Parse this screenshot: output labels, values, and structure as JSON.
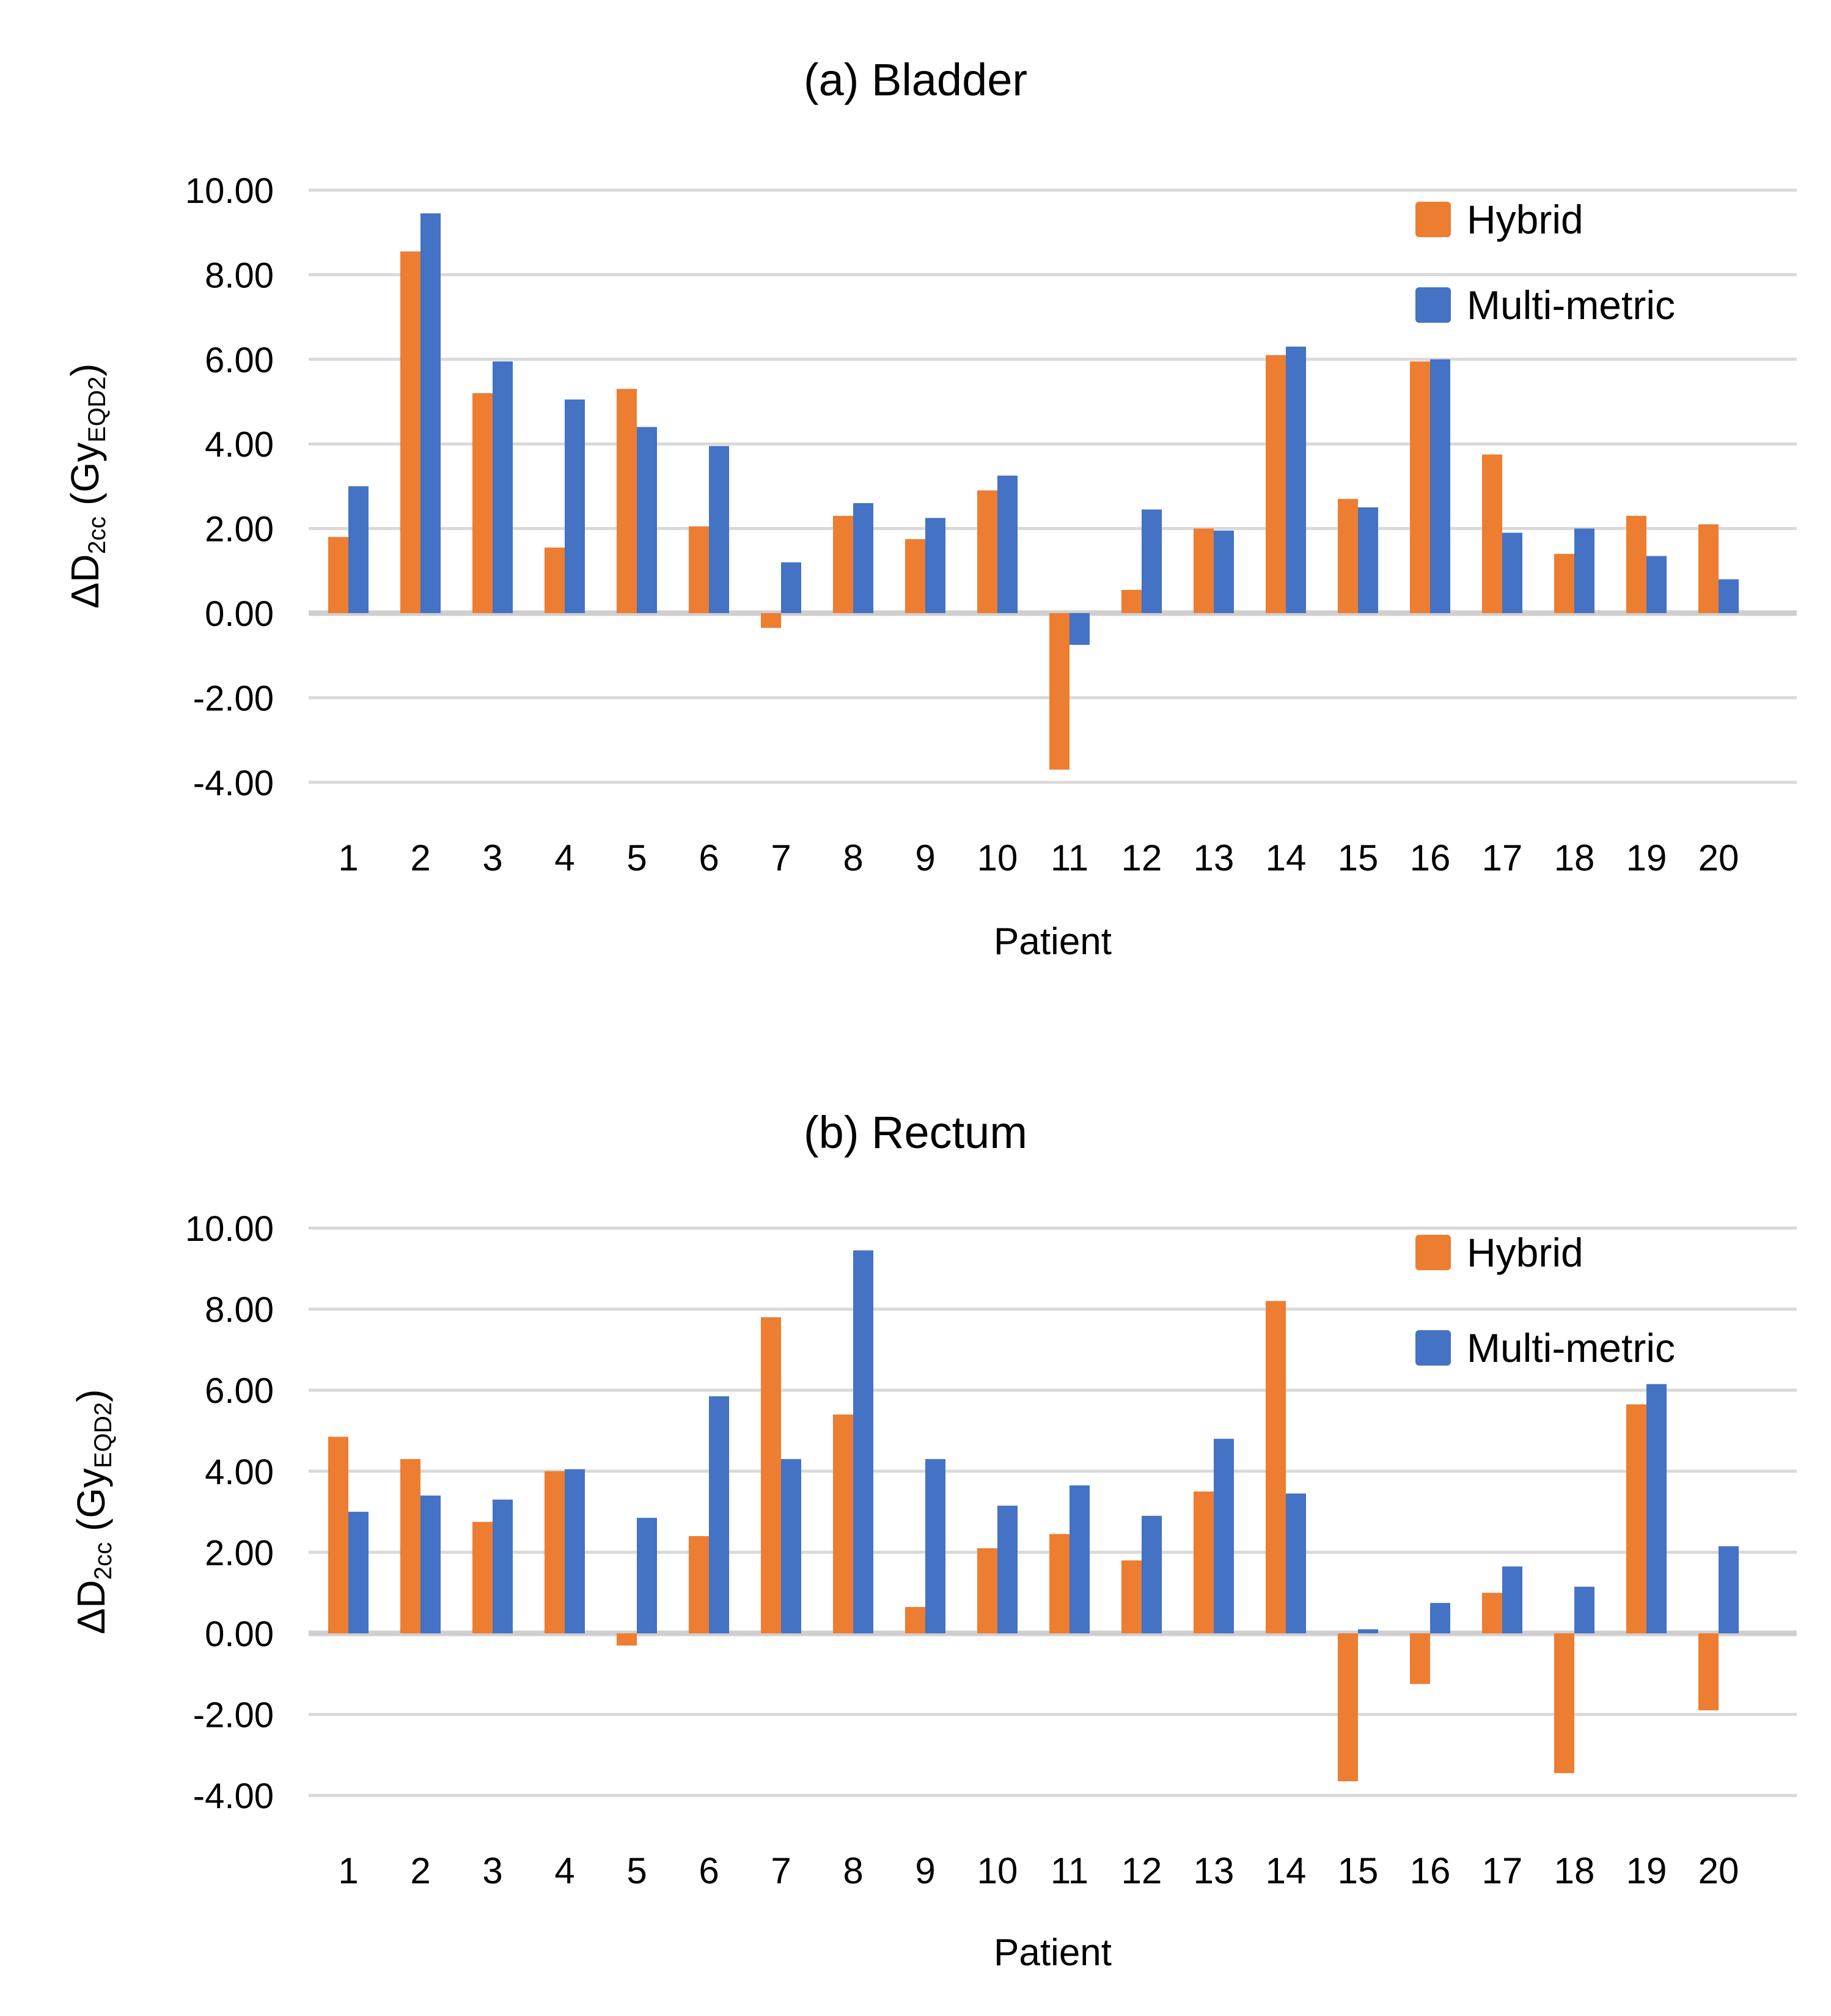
{
  "colors": {
    "hybrid": "#ED7D31",
    "multimetric": "#4472C4",
    "gridline": "#D9D9D9",
    "zero_line": "#D0CECE",
    "text": "#000000",
    "background": "#FFFFFF"
  },
  "chart_data": [
    {
      "type": "bar",
      "title": "(a) Bladder",
      "xlabel": "Patient",
      "ylabel": "ΔD2cc (GyEQD2)",
      "ylabel_parts": {
        "prefix": "ΔD",
        "sub1": "2cc",
        "mid": " (Gy",
        "sub2": "EQD2",
        "suffix": ")"
      },
      "ylim": [
        -4,
        10
      ],
      "yticks": [
        10,
        8,
        6,
        4,
        2,
        0,
        -2,
        -4
      ],
      "ytick_labels": [
        "10.00",
        "8.00",
        "6.00",
        "4.00",
        "2.00",
        "0.00",
        "-2.00",
        "-4.00"
      ],
      "grid": true,
      "legend_position": "top-right",
      "categories": [
        "1",
        "2",
        "3",
        "4",
        "5",
        "6",
        "7",
        "8",
        "9",
        "10",
        "11",
        "12",
        "13",
        "14",
        "15",
        "16",
        "17",
        "18",
        "19",
        "20"
      ],
      "series": [
        {
          "name": "Hybrid",
          "color": "#ED7D31",
          "values": [
            1.8,
            8.55,
            5.2,
            1.55,
            5.3,
            2.05,
            -0.35,
            2.3,
            1.75,
            2.9,
            -3.7,
            0.55,
            2.0,
            6.1,
            2.7,
            5.95,
            3.75,
            1.4,
            2.3,
            2.1
          ]
        },
        {
          "name": "Multi-metric",
          "color": "#4472C4",
          "values": [
            3.0,
            9.45,
            5.95,
            5.05,
            4.4,
            3.95,
            1.2,
            2.6,
            2.25,
            3.25,
            -0.75,
            2.45,
            1.95,
            6.3,
            2.5,
            6.0,
            1.9,
            2.0,
            1.35,
            0.8
          ]
        }
      ]
    },
    {
      "type": "bar",
      "title": "(b) Rectum",
      "xlabel": "Patient",
      "ylabel": "ΔD2cc (GyEQD2)",
      "ylabel_parts": {
        "prefix": "ΔD",
        "sub1": "2cc",
        "mid": " (Gy",
        "sub2": "EQD2",
        "suffix": ")"
      },
      "ylim": [
        -4,
        10
      ],
      "yticks": [
        10,
        8,
        6,
        4,
        2,
        0,
        -2,
        -4
      ],
      "ytick_labels": [
        "10.00",
        "8.00",
        "6.00",
        "4.00",
        "2.00",
        "0.00",
        "-2.00",
        "-4.00"
      ],
      "grid": true,
      "legend_position": "top-right",
      "categories": [
        "1",
        "2",
        "3",
        "4",
        "5",
        "6",
        "7",
        "8",
        "9",
        "10",
        "11",
        "12",
        "13",
        "14",
        "15",
        "16",
        "17",
        "18",
        "19",
        "20"
      ],
      "series": [
        {
          "name": "Hybrid",
          "color": "#ED7D31",
          "values": [
            4.85,
            4.3,
            2.75,
            4.0,
            -0.3,
            2.4,
            7.8,
            5.4,
            0.65,
            2.1,
            2.45,
            1.8,
            3.5,
            8.2,
            -3.65,
            -1.25,
            1.0,
            -3.45,
            5.65,
            -1.9
          ]
        },
        {
          "name": "Multi-metric",
          "color": "#4472C4",
          "values": [
            3.0,
            3.4,
            3.3,
            4.05,
            2.85,
            5.85,
            4.3,
            9.45,
            4.3,
            3.15,
            3.65,
            2.9,
            4.8,
            3.45,
            0.1,
            0.75,
            1.65,
            1.15,
            6.15,
            2.15
          ]
        }
      ]
    }
  ]
}
